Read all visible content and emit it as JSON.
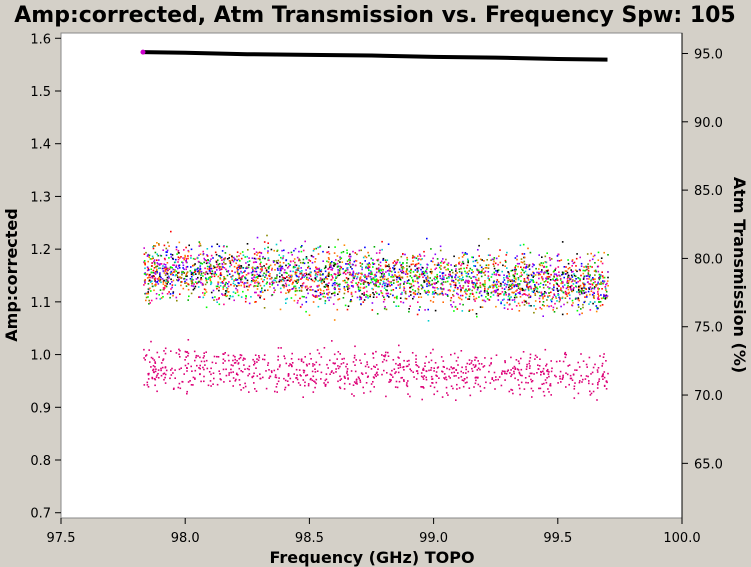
{
  "chart_data": {
    "type": "scatter",
    "title": "Amp:corrected, Atm Transmission vs. Frequency Spw: 105",
    "xlabel": "Frequency (GHz) TOPO",
    "ylabel": "Amp:corrected",
    "y2label": "Atm Transmission (%)",
    "xlim": [
      97.5,
      100.0
    ],
    "ylim": [
      0.69,
      1.61
    ],
    "y2lim": [
      61.0,
      96.5
    ],
    "x_ticks": [
      "97.5",
      "98.0",
      "98.5",
      "99.0",
      "99.5",
      "100.0"
    ],
    "y_ticks": [
      "0.7",
      "0.8",
      "0.9",
      "1.0",
      "1.1",
      "1.2",
      "1.3",
      "1.4",
      "1.5",
      "1.6"
    ],
    "y2_ticks": [
      "65.0",
      "70.0",
      "75.0",
      "80.0",
      "85.0",
      "90.0",
      "95.0"
    ],
    "grid": false,
    "series": [
      {
        "kind": "atm_transmission",
        "axis": "right",
        "color": "#000000",
        "x": [
          97.83,
          98.0,
          98.25,
          98.5,
          98.75,
          99.0,
          99.25,
          99.5,
          99.7
        ],
        "y": [
          95.1,
          95.05,
          94.95,
          94.9,
          94.85,
          94.75,
          94.7,
          94.6,
          94.55
        ]
      },
      {
        "kind": "amplitude_band",
        "axis": "left",
        "colors": [
          "#ff0000",
          "#00aa00",
          "#0000ff",
          "#ff8800",
          "#00cccc",
          "#cc00cc",
          "#888800",
          "#000000",
          "#ff6600",
          "#8800ff",
          "#00ff00",
          "#ff0088"
        ],
        "x_range": [
          97.83,
          99.7
        ],
        "center_start": 1.16,
        "center_end": 1.135,
        "spread": 0.09
      },
      {
        "kind": "amplitude_band",
        "axis": "left",
        "colors": [
          "#dd0077"
        ],
        "x_range": [
          97.83,
          99.7
        ],
        "center_start": 0.975,
        "center_end": 0.962,
        "spread": 0.07
      }
    ]
  }
}
